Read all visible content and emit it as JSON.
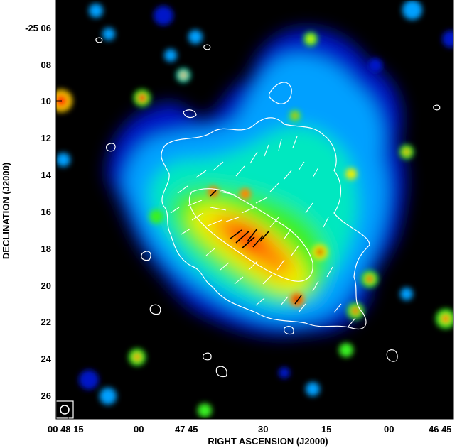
{
  "chart_data": {
    "type": "heatmap",
    "title": "",
    "xlabel": "RIGHT ASCENSION (J2000)",
    "ylabel": "DECLINATION (J2000)",
    "x_tick_labels": [
      "00 48 15",
      "00",
      "47 45",
      "30",
      "15",
      "00",
      "46 45"
    ],
    "y_tick_labels": [
      "-25 06",
      "08",
      "10",
      "12",
      "14",
      "16",
      "18",
      "20",
      "22",
      "24",
      "26"
    ],
    "colormap": [
      "#000000",
      "#0018c8",
      "#00a0ff",
      "#00e8c0",
      "#38f020",
      "#f0f000",
      "#ff8800",
      "#ff1800",
      "#c80000"
    ],
    "background_color": "#000000",
    "contour_color": "#ffffff",
    "vector_color": "#ffffff",
    "beam_symbol_color": "#ffffff",
    "overlays": [
      "intensity map",
      "white contours",
      "polarization vectors"
    ]
  }
}
